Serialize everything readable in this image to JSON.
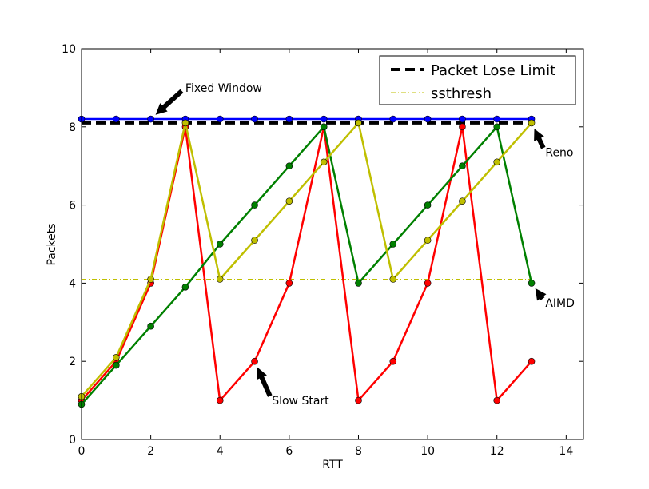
{
  "chart_data": {
    "type": "line",
    "xlabel": "RTT",
    "ylabel": "Packets",
    "xlim": [
      0,
      14.5
    ],
    "ylim": [
      0,
      10
    ],
    "xticks": [
      0,
      2,
      4,
      6,
      8,
      10,
      12,
      14
    ],
    "yticks": [
      0,
      2,
      4,
      6,
      8,
      10
    ],
    "grid": false,
    "legend_position": "top-right",
    "series": [
      {
        "key": "fixed-window",
        "color": "#0000ff",
        "style": "solid-markers",
        "x": [
          0,
          1,
          2,
          3,
          4,
          5,
          6,
          7,
          8,
          9,
          10,
          11,
          12,
          13
        ],
        "y": [
          8.2,
          8.2,
          8.2,
          8.2,
          8.2,
          8.2,
          8.2,
          8.2,
          8.2,
          8.2,
          8.2,
          8.2,
          8.2,
          8.2
        ]
      },
      {
        "key": "slow-start",
        "color": "#ff0000",
        "style": "solid-markers",
        "x": [
          0,
          1,
          2,
          3,
          4,
          5,
          6,
          7,
          8,
          9,
          10,
          11,
          12,
          13
        ],
        "y": [
          1,
          2,
          4,
          8,
          1,
          2,
          4,
          8,
          1,
          2,
          4,
          8,
          1,
          2
        ]
      },
      {
        "key": "aimd",
        "color": "#008000",
        "style": "solid-markers",
        "x": [
          0,
          1,
          2,
          3,
          4,
          5,
          6,
          7,
          8,
          9,
          10,
          11,
          12,
          13
        ],
        "y": [
          0.9,
          1.9,
          2.9,
          3.9,
          5,
          6,
          7,
          8,
          4,
          5,
          6,
          7,
          8,
          4
        ]
      },
      {
        "key": "reno",
        "color": "#bfbf00",
        "style": "solid-markers",
        "x": [
          0,
          1,
          2,
          3,
          4,
          5,
          6,
          7,
          8,
          9,
          10,
          11,
          12,
          13
        ],
        "y": [
          1.1,
          2.1,
          4.1,
          8.1,
          4.1,
          5.1,
          6.1,
          7.1,
          8.1,
          4.1,
          5.1,
          6.1,
          7.1,
          8.1
        ]
      },
      {
        "key": "packet-lose-limit",
        "name": "Packet Lose Limit",
        "color": "#000000",
        "style": "dashed",
        "x": [
          0,
          13
        ],
        "y": [
          8.1,
          8.1
        ]
      },
      {
        "key": "ssthresh",
        "name": "ssthresh",
        "color": "#bfbf00",
        "style": "dashdot",
        "x": [
          0,
          13
        ],
        "y": [
          4.1,
          4.1
        ]
      }
    ],
    "legend": [
      "Packet Lose Limit",
      "ssthresh"
    ],
    "annotations": [
      {
        "text": "Fixed Window",
        "text_at": [
          3,
          9.0
        ],
        "arrow_to": [
          2,
          8.2
        ],
        "align": "start"
      },
      {
        "text": "Reno",
        "text_at": [
          13.4,
          7.35
        ],
        "arrow_to": [
          13,
          8.1
        ],
        "align": "start"
      },
      {
        "text": "AIMD",
        "text_at": [
          13.4,
          3.5
        ],
        "arrow_to": [
          13,
          4
        ],
        "align": "start"
      },
      {
        "text": "Slow Start",
        "text_at": [
          5.5,
          1.0
        ],
        "arrow_to": [
          5,
          2
        ],
        "align": "start"
      }
    ]
  }
}
